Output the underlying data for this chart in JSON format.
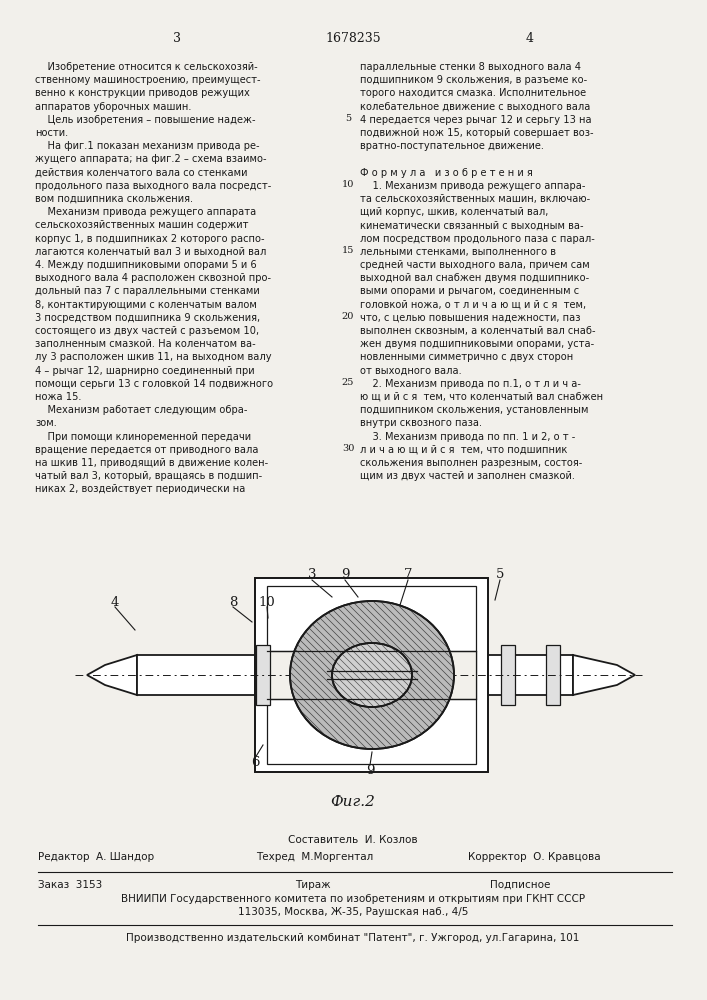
{
  "page_number_left": "3",
  "patent_number": "1678235",
  "page_number_right": "4",
  "background_color": "#f2f0eb",
  "text_color": "#1a1a1a",
  "left_col_lines": [
    "    Изобретение относится к сельскохозяй-",
    "ственному машиностроению, преимущест-",
    "венно к конструкции приводов режущих",
    "аппаратов уборочных машин.",
    "    Цель изобретения – повышение надеж-",
    "ности.",
    "    На фиг.1 показан механизм привода ре-",
    "жущего аппарата; на фиг.2 – схема взаимо-",
    "действия коленчатого вала со стенками",
    "продольного паза выходного вала посредст-",
    "вом подшипника скольжения.",
    "    Механизм привода режущего аппарата",
    "сельскохозяйственных машин содержит",
    "корпус 1, в подшипниках 2 которого распо-",
    "лагаются коленчатый вал 3 и выходной вал",
    "4. Между подшипниковыми опорами 5 и 6",
    "выходного вала 4 расположен сквозной про-",
    "дольный паз 7 с параллельными стенками",
    "8, контактирующими с коленчатым валом",
    "3 посредством подшипника 9 скольжения,",
    "состоящего из двух частей с разъемом 10,",
    "заполненным смазкой. На коленчатом ва-",
    "лу 3 расположен шкив 11, на выходном валу",
    "4 – рычаг 12, шарнирно соединенный при",
    "помощи серьги 13 с головкой 14 подвижного",
    "ножа 15.",
    "    Механизм работает следующим обра-",
    "зом.",
    "    При помощи клиноременной передачи",
    "вращение передается от приводного вала",
    "на шкив 11, приводящий в движение колен-",
    "чатый вал 3, который, вращаясь в подшип-",
    "никах 2, воздействует периодически на"
  ],
  "line_numbers_left": [
    5,
    10,
    15,
    20,
    25,
    30
  ],
  "line_numbers_positions": [
    4,
    9,
    14,
    19,
    24,
    29
  ],
  "right_col_lines": [
    "параллельные стенки 8 выходного вала 4",
    "подшипником 9 скольжения, в разъеме ко-",
    "торого находится смазка. Исполнительное",
    "колебательное движение с выходного вала",
    "4 передается через рычаг 12 и серьгу 13 на",
    "подвижной нож 15, который совершает воз-",
    "вратно-поступательное движение.",
    "",
    "Ф о р м у л а   и з о б р е т е н и я",
    "    1. Механизм привода режущего аппара-",
    "та сельскохозяйственных машин, включаю-",
    "щий корпус, шкив, коленчатый вал,",
    "кинематически связанный с выходным ва-",
    "лом посредством продольного паза с парал-",
    "лельными стенками, выполненного в",
    "средней части выходного вала, причем сам",
    "выходной вал снабжен двумя подшипнико-",
    "выми опорами и рычагом, соединенным с",
    "головкой ножа, о т л и ч а ю щ и й с я  тем,",
    "что, с целью повышения надежности, паз",
    "выполнен сквозным, а коленчатый вал снаб-",
    "жен двумя подшипниковыми опорами, уста-",
    "новленными симметрично с двух сторон",
    "от выходного вала.",
    "    2. Механизм привода по п.1, о т л и ч а-",
    "ю щ и й с я  тем, что коленчатый вал снабжен",
    "подшипником скольжения, установленным",
    "внутри сквозного паза.",
    "    3. Механизм привода по пп. 1 и 2, о т -",
    "л и ч а ю щ и й с я  тем, что подшипник",
    "скольжения выполнен разрезным, состоя-",
    "щим из двух частей и заполнен смазкой."
  ],
  "fig_caption": "Фиг.2",
  "footer_composer": "Составитель  И. Козлов",
  "footer_editor": "Редактор  А. Шандор",
  "footer_techred": "Техред  М.Моргентал",
  "footer_corrector": "Корректор  О. Кравцова",
  "footer_order": "Заказ  3153",
  "footer_tirazh": "Тираж",
  "footer_podpisnoe": "Подписное",
  "footer_vniipki": "ВНИИПИ Государственного комитета по изобретениям и открытиям при ГКНТ СССР",
  "footer_address": "113035, Москва, Ж-35, Раушская наб., 4/5",
  "footer_plant": "Производственно издательский комбинат \"Патент\", г. Ужгород, ул.Гагарина, 101"
}
